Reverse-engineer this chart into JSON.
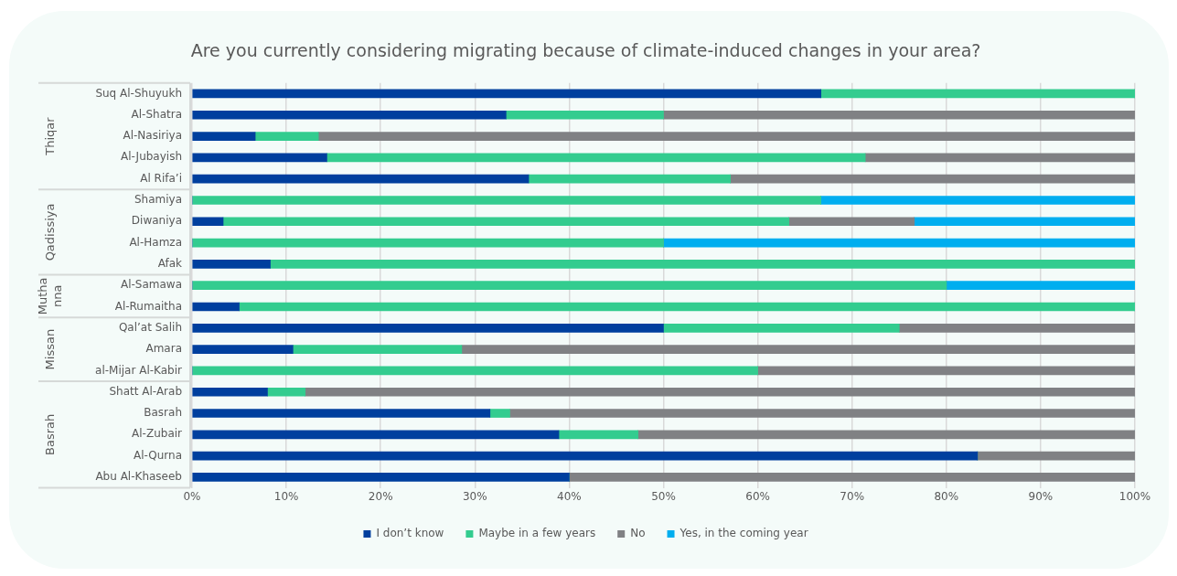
{
  "chart_data": {
    "type": "bar",
    "orientation": "horizontal",
    "stacked": true,
    "title": "Are you currently considering migrating because of climate-induced changes in your area?",
    "categories": [
      "Suq Al-Shuyukh",
      "Al-Shatra",
      "Al-Nasiriya",
      "Al-Jubayish",
      "Al Rifa’i",
      "Shamiya",
      "Diwaniya",
      "Al-Hamza",
      "Afak",
      "Al-Samawa",
      "Al-Rumaitha",
      "Qal’at Salih",
      "Amara",
      "al-Mijar Al-Kabir",
      "Shatt Al-Arab",
      "Basrah",
      "Al-Zubair",
      "Al-Qurna",
      "Abu Al-Khaseeb"
    ],
    "series": [
      {
        "name": "I don’t know",
        "color": "#003f9e",
        "values": [
          66.7,
          33.3,
          6.7,
          14.3,
          35.7,
          0,
          3.3,
          0,
          8.3,
          0,
          5,
          50,
          10.7,
          0,
          8,
          31.6,
          38.9,
          83.3,
          40
        ]
      },
      {
        "name": "Maybe in a few years",
        "color": "#33cc8f",
        "values": [
          33.3,
          16.7,
          6.7,
          57.1,
          21.4,
          66.7,
          60,
          50,
          91.7,
          80,
          95,
          25,
          17.9,
          60,
          4,
          2.1,
          8.4,
          0,
          0
        ]
      },
      {
        "name": "No",
        "color": "#808184",
        "values": [
          0,
          50,
          86.6,
          28.6,
          42.9,
          0,
          13.3,
          0,
          0,
          0,
          0,
          25,
          71.4,
          40,
          88,
          66.3,
          52.7,
          16.7,
          60
        ]
      },
      {
        "name": "Yes, in the coming year",
        "color": "#00aeef",
        "values": [
          0,
          0,
          0,
          0,
          0,
          33.3,
          23.4,
          50,
          0,
          20,
          0,
          0,
          0,
          0,
          0,
          0,
          0,
          0,
          0
        ]
      }
    ],
    "xlim": [
      0,
      100
    ],
    "xticks": [
      {
        "value": 0,
        "label": "0%"
      },
      {
        "value": 10,
        "label": "10%"
      },
      {
        "value": 20,
        "label": "20%"
      },
      {
        "value": 30,
        "label": "30%"
      },
      {
        "value": 40,
        "label": "40%"
      },
      {
        "value": 50,
        "label": "50%"
      },
      {
        "value": 60,
        "label": "60%"
      },
      {
        "value": 70,
        "label": "70%"
      },
      {
        "value": 80,
        "label": "80%"
      },
      {
        "value": 90,
        "label": "90%"
      },
      {
        "value": 100,
        "label": "100%"
      }
    ],
    "annotations": [
      "Thiqar",
      "Qadissiya",
      "Muthanna",
      "Missan",
      "Basrah"
    ],
    "grid": "x",
    "legend": "bottom"
  }
}
